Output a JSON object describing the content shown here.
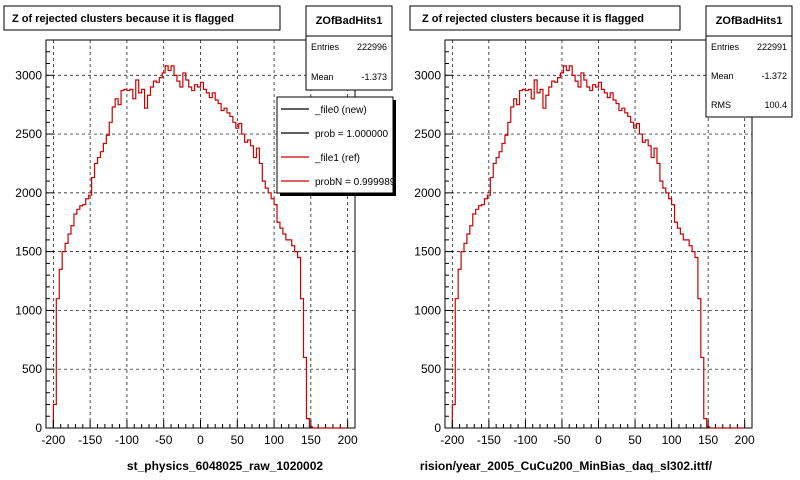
{
  "chart_data": [
    {
      "type": "line",
      "title": "Z of rejected clusters  because it is flagged",
      "xlabel": "st_physics_6048025_raw_1020002",
      "xlim": [
        -210,
        210
      ],
      "ylim": [
        0,
        3300
      ],
      "xticks": [
        -200,
        -150,
        -100,
        -50,
        0,
        50,
        100,
        150,
        200
      ],
      "yticks": [
        0,
        500,
        1000,
        1500,
        2000,
        2500,
        3000
      ],
      "grid": true,
      "stats": {
        "name": "ZOfBadHits1",
        "rows": [
          {
            "label": "Entries",
            "value": "222996"
          },
          {
            "label": "Mean",
            "value": "-1.373"
          }
        ]
      },
      "legend": {
        "placement": "top-right",
        "entries": [
          {
            "label": "_file0 (new)",
            "color": "#000000"
          },
          {
            "label": "prob = 1.000000",
            "color": "#000000"
          },
          {
            "label": "_file1 (ref)",
            "color": "#cc0000"
          },
          {
            "label": "probN = 0.999989",
            "color": "#cc0000"
          }
        ]
      },
      "series": [
        {
          "color": "#cc0000",
          "x": [
            -200,
            -196,
            -192,
            -188,
            -184,
            -180,
            -176,
            -172,
            -168,
            -164,
            -160,
            -156,
            -152,
            -148,
            -144,
            -140,
            -136,
            -132,
            -128,
            -124,
            -120,
            -116,
            -112,
            -108,
            -104,
            -100,
            -96,
            -92,
            -88,
            -84,
            -80,
            -76,
            -72,
            -68,
            -64,
            -60,
            -56,
            -52,
            -48,
            -44,
            -40,
            -36,
            -32,
            -28,
            -24,
            -20,
            -16,
            -12,
            -8,
            -4,
            0,
            4,
            8,
            12,
            16,
            20,
            24,
            28,
            32,
            36,
            40,
            44,
            48,
            52,
            56,
            60,
            64,
            68,
            72,
            76,
            80,
            84,
            88,
            92,
            96,
            100,
            104,
            108,
            112,
            116,
            120,
            124,
            128,
            132,
            136,
            140,
            144,
            148,
            152,
            156,
            160,
            164,
            168,
            172,
            176,
            180,
            184,
            188,
            192,
            196
          ],
          "y": [
            200,
            1100,
            1350,
            1500,
            1570,
            1650,
            1720,
            1820,
            1860,
            1890,
            1900,
            1950,
            1980,
            2130,
            2250,
            2300,
            2350,
            2420,
            2490,
            2600,
            2730,
            2800,
            2750,
            2870,
            2880,
            2870,
            2880,
            2800,
            2960,
            2850,
            2880,
            2720,
            2830,
            2900,
            2950,
            2940,
            2980,
            3020,
            3080,
            3040,
            3080,
            3000,
            2950,
            2900,
            3020,
            2960,
            2900,
            2870,
            2920,
            2900,
            2940,
            2880,
            2850,
            2810,
            2850,
            2790,
            2760,
            2700,
            2720,
            2680,
            2650,
            2600,
            2550,
            2590,
            2500,
            2430,
            2450,
            2400,
            2300,
            2380,
            2250,
            2100,
            2040,
            2000,
            1950,
            1900,
            1750,
            1700,
            1650,
            1600,
            1600,
            1550,
            1500,
            1450,
            1100,
            600,
            80,
            10,
            0,
            0,
            0,
            0,
            0,
            0,
            0,
            0,
            0,
            0,
            0,
            0
          ]
        }
      ]
    },
    {
      "type": "line",
      "title": "Z of rejected clusters  because it is flagged",
      "xlabel": "rision/year_2005_CuCu200_MinBias_daq_sl302.ittf/",
      "xlim": [
        -210,
        210
      ],
      "ylim": [
        0,
        3300
      ],
      "xticks": [
        -200,
        -150,
        -100,
        -50,
        0,
        50,
        100,
        150,
        200
      ],
      "yticks": [
        0,
        500,
        1000,
        1500,
        2000,
        2500,
        3000
      ],
      "grid": true,
      "stats": {
        "name": "ZOfBadHits1",
        "rows": [
          {
            "label": "Entries",
            "value": "222991"
          },
          {
            "label": "Mean",
            "value": "-1.372"
          },
          {
            "label": "RMS",
            "value": "100.4"
          }
        ]
      },
      "series": [
        {
          "color": "#cc0000",
          "x": [
            -200,
            -196,
            -192,
            -188,
            -184,
            -180,
            -176,
            -172,
            -168,
            -164,
            -160,
            -156,
            -152,
            -148,
            -144,
            -140,
            -136,
            -132,
            -128,
            -124,
            -120,
            -116,
            -112,
            -108,
            -104,
            -100,
            -96,
            -92,
            -88,
            -84,
            -80,
            -76,
            -72,
            -68,
            -64,
            -60,
            -56,
            -52,
            -48,
            -44,
            -40,
            -36,
            -32,
            -28,
            -24,
            -20,
            -16,
            -12,
            -8,
            -4,
            0,
            4,
            8,
            12,
            16,
            20,
            24,
            28,
            32,
            36,
            40,
            44,
            48,
            52,
            56,
            60,
            64,
            68,
            72,
            76,
            80,
            84,
            88,
            92,
            96,
            100,
            104,
            108,
            112,
            116,
            120,
            124,
            128,
            132,
            136,
            140,
            144,
            148,
            152,
            156,
            160,
            164,
            168,
            172,
            176,
            180,
            184,
            188,
            192,
            196
          ],
          "y": [
            200,
            1100,
            1350,
            1500,
            1570,
            1650,
            1720,
            1820,
            1860,
            1890,
            1900,
            1950,
            1980,
            2130,
            2250,
            2300,
            2350,
            2420,
            2490,
            2600,
            2730,
            2800,
            2750,
            2870,
            2880,
            2870,
            2880,
            2800,
            2960,
            2850,
            2880,
            2720,
            2830,
            2900,
            2950,
            2940,
            2980,
            3020,
            3080,
            3040,
            3080,
            3000,
            2950,
            2900,
            3020,
            2960,
            2900,
            2870,
            2920,
            2900,
            2940,
            2880,
            2850,
            2810,
            2850,
            2790,
            2760,
            2700,
            2720,
            2680,
            2650,
            2600,
            2550,
            2590,
            2500,
            2430,
            2450,
            2400,
            2300,
            2380,
            2250,
            2100,
            2040,
            2000,
            1950,
            1900,
            1750,
            1700,
            1650,
            1600,
            1600,
            1550,
            1500,
            1450,
            1100,
            600,
            80,
            10,
            0,
            0,
            0,
            0,
            0,
            0,
            0,
            0,
            0,
            0,
            0,
            0
          ]
        }
      ]
    }
  ]
}
